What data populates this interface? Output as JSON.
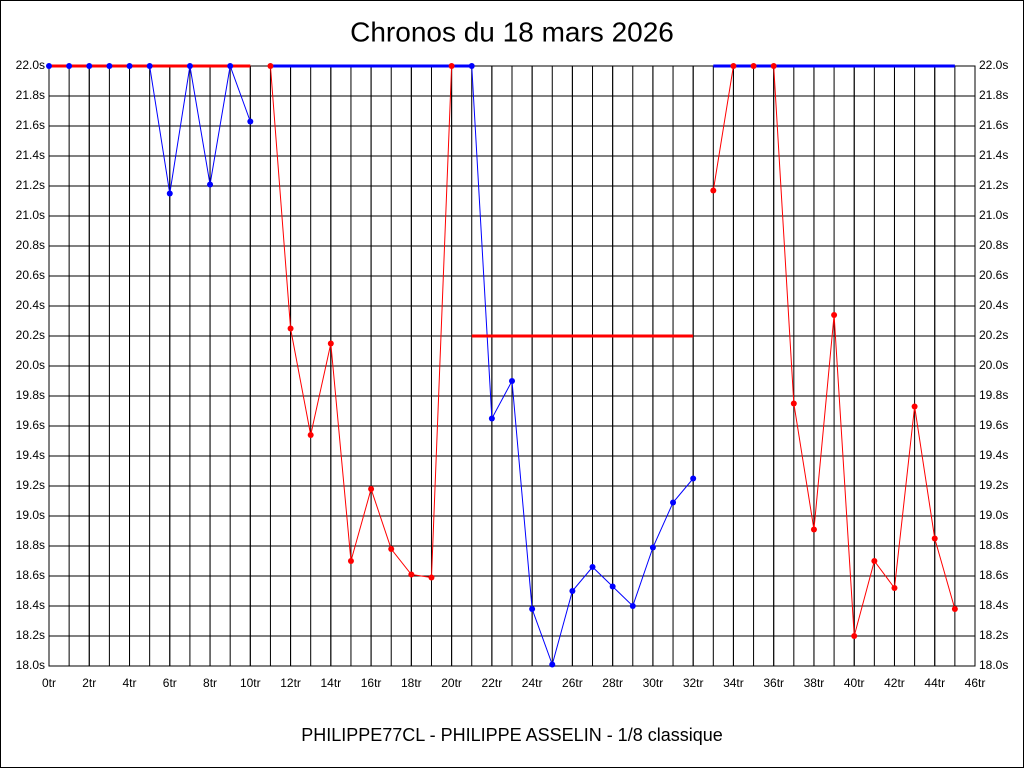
{
  "chart_data": {
    "type": "line",
    "title": "Chronos du 18 mars 2026",
    "footer": "PHILIPPE77CL - PHILIPPE ASSELIN - 1/8 classique",
    "x": [
      0,
      1,
      2,
      3,
      4,
      5,
      6,
      7,
      8,
      9,
      10,
      11,
      12,
      13,
      14,
      15,
      16,
      17,
      18,
      19,
      20,
      21,
      22,
      23,
      24,
      25,
      26,
      27,
      28,
      29,
      30,
      31,
      32,
      33,
      34,
      35,
      36,
      37,
      38,
      39,
      40,
      41,
      42,
      43,
      44,
      45
    ],
    "series": [
      {
        "color": "#0000ff",
        "values": [
          22.0,
          22.0,
          22.0,
          22.0,
          22.0,
          22.0,
          21.15,
          22.0,
          21.21,
          22.0,
          21.63,
          null,
          null,
          null,
          null,
          null,
          null,
          null,
          null,
          null,
          null,
          22.0,
          19.65,
          19.9,
          18.38,
          18.01,
          18.5,
          18.66,
          18.53,
          18.4,
          18.79,
          19.09,
          19.25,
          null,
          null,
          null,
          null,
          null,
          null,
          null,
          null,
          null,
          null,
          null,
          null,
          null
        ]
      },
      {
        "color": "#ff0000",
        "values": [
          null,
          null,
          null,
          null,
          null,
          null,
          null,
          null,
          null,
          null,
          null,
          22.0,
          20.25,
          19.54,
          20.15,
          18.7,
          19.18,
          18.78,
          18.61,
          18.59,
          22.0,
          null,
          null,
          null,
          null,
          null,
          null,
          null,
          null,
          null,
          null,
          null,
          null,
          21.17,
          22.0,
          22.0,
          22.0,
          19.75,
          18.91,
          20.34,
          18.2,
          18.7,
          18.52,
          19.73,
          18.85,
          18.38
        ]
      }
    ],
    "levels": [
      {
        "color": "#ff0000",
        "from": 0,
        "to": 10,
        "value": 22.0
      },
      {
        "color": "#0000ff",
        "from": 11,
        "to": 21,
        "value": 22.0
      },
      {
        "color": "#ff0000",
        "from": 21,
        "to": 32,
        "value": 20.2
      },
      {
        "color": "#0000ff",
        "from": 33,
        "to": 45,
        "value": 22.0
      }
    ],
    "xlim": [
      0,
      46
    ],
    "x_minor_step": 1,
    "xticks": [
      {
        "value": 0,
        "label": "0tr"
      },
      {
        "value": 2,
        "label": "2tr"
      },
      {
        "value": 4,
        "label": "4tr"
      },
      {
        "value": 6,
        "label": "6tr"
      },
      {
        "value": 8,
        "label": "8tr"
      },
      {
        "value": 10,
        "label": "10tr"
      },
      {
        "value": 12,
        "label": "12tr"
      },
      {
        "value": 14,
        "label": "14tr"
      },
      {
        "value": 16,
        "label": "16tr"
      },
      {
        "value": 18,
        "label": "18tr"
      },
      {
        "value": 20,
        "label": "20tr"
      },
      {
        "value": 22,
        "label": "22tr"
      },
      {
        "value": 24,
        "label": "24tr"
      },
      {
        "value": 26,
        "label": "26tr"
      },
      {
        "value": 28,
        "label": "28tr"
      },
      {
        "value": 30,
        "label": "30tr"
      },
      {
        "value": 32,
        "label": "32tr"
      },
      {
        "value": 34,
        "label": "34tr"
      },
      {
        "value": 36,
        "label": "36tr"
      },
      {
        "value": 38,
        "label": "38tr"
      },
      {
        "value": 40,
        "label": "40tr"
      },
      {
        "value": 42,
        "label": "42tr"
      },
      {
        "value": 44,
        "label": "44tr"
      },
      {
        "value": 46,
        "label": "46tr"
      }
    ],
    "ylim": [
      18.0,
      22.0
    ],
    "yticks": [
      {
        "value": 18.0,
        "label": "18.0s"
      },
      {
        "value": 18.2,
        "label": "18.2s"
      },
      {
        "value": 18.4,
        "label": "18.4s"
      },
      {
        "value": 18.6,
        "label": "18.6s"
      },
      {
        "value": 18.8,
        "label": "18.8s"
      },
      {
        "value": 19.0,
        "label": "19.0s"
      },
      {
        "value": 19.2,
        "label": "19.2s"
      },
      {
        "value": 19.4,
        "label": "19.4s"
      },
      {
        "value": 19.6,
        "label": "19.6s"
      },
      {
        "value": 19.8,
        "label": "19.8s"
      },
      {
        "value": 20.0,
        "label": "20.0s"
      },
      {
        "value": 20.2,
        "label": "20.2s"
      },
      {
        "value": 20.4,
        "label": "20.4s"
      },
      {
        "value": 20.6,
        "label": "20.6s"
      },
      {
        "value": 20.8,
        "label": "20.8s"
      },
      {
        "value": 21.0,
        "label": "21.0s"
      },
      {
        "value": 21.2,
        "label": "21.2s"
      },
      {
        "value": 21.4,
        "label": "21.4s"
      },
      {
        "value": 21.6,
        "label": "21.6s"
      },
      {
        "value": 21.8,
        "label": "21.8s"
      },
      {
        "value": 22.0,
        "label": "22.0s"
      }
    ],
    "grid": true
  }
}
